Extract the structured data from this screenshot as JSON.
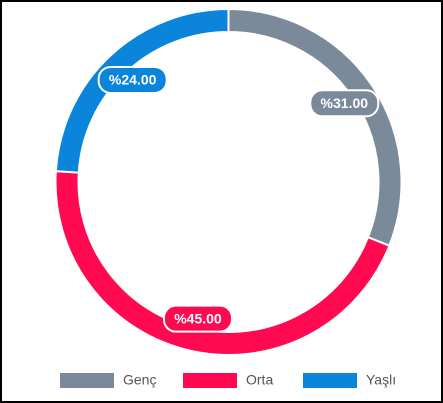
{
  "chart_data": {
    "type": "doughnut",
    "categories": [
      "Genç",
      "Orta",
      "Yaşlı"
    ],
    "values": [
      31,
      45,
      24
    ],
    "value_labels": [
      "%31.00",
      "%45.00",
      "%24.00"
    ],
    "colors": [
      "#7b8a9b",
      "#ff0a50",
      "#0b84dc"
    ],
    "legend": "bottom"
  }
}
